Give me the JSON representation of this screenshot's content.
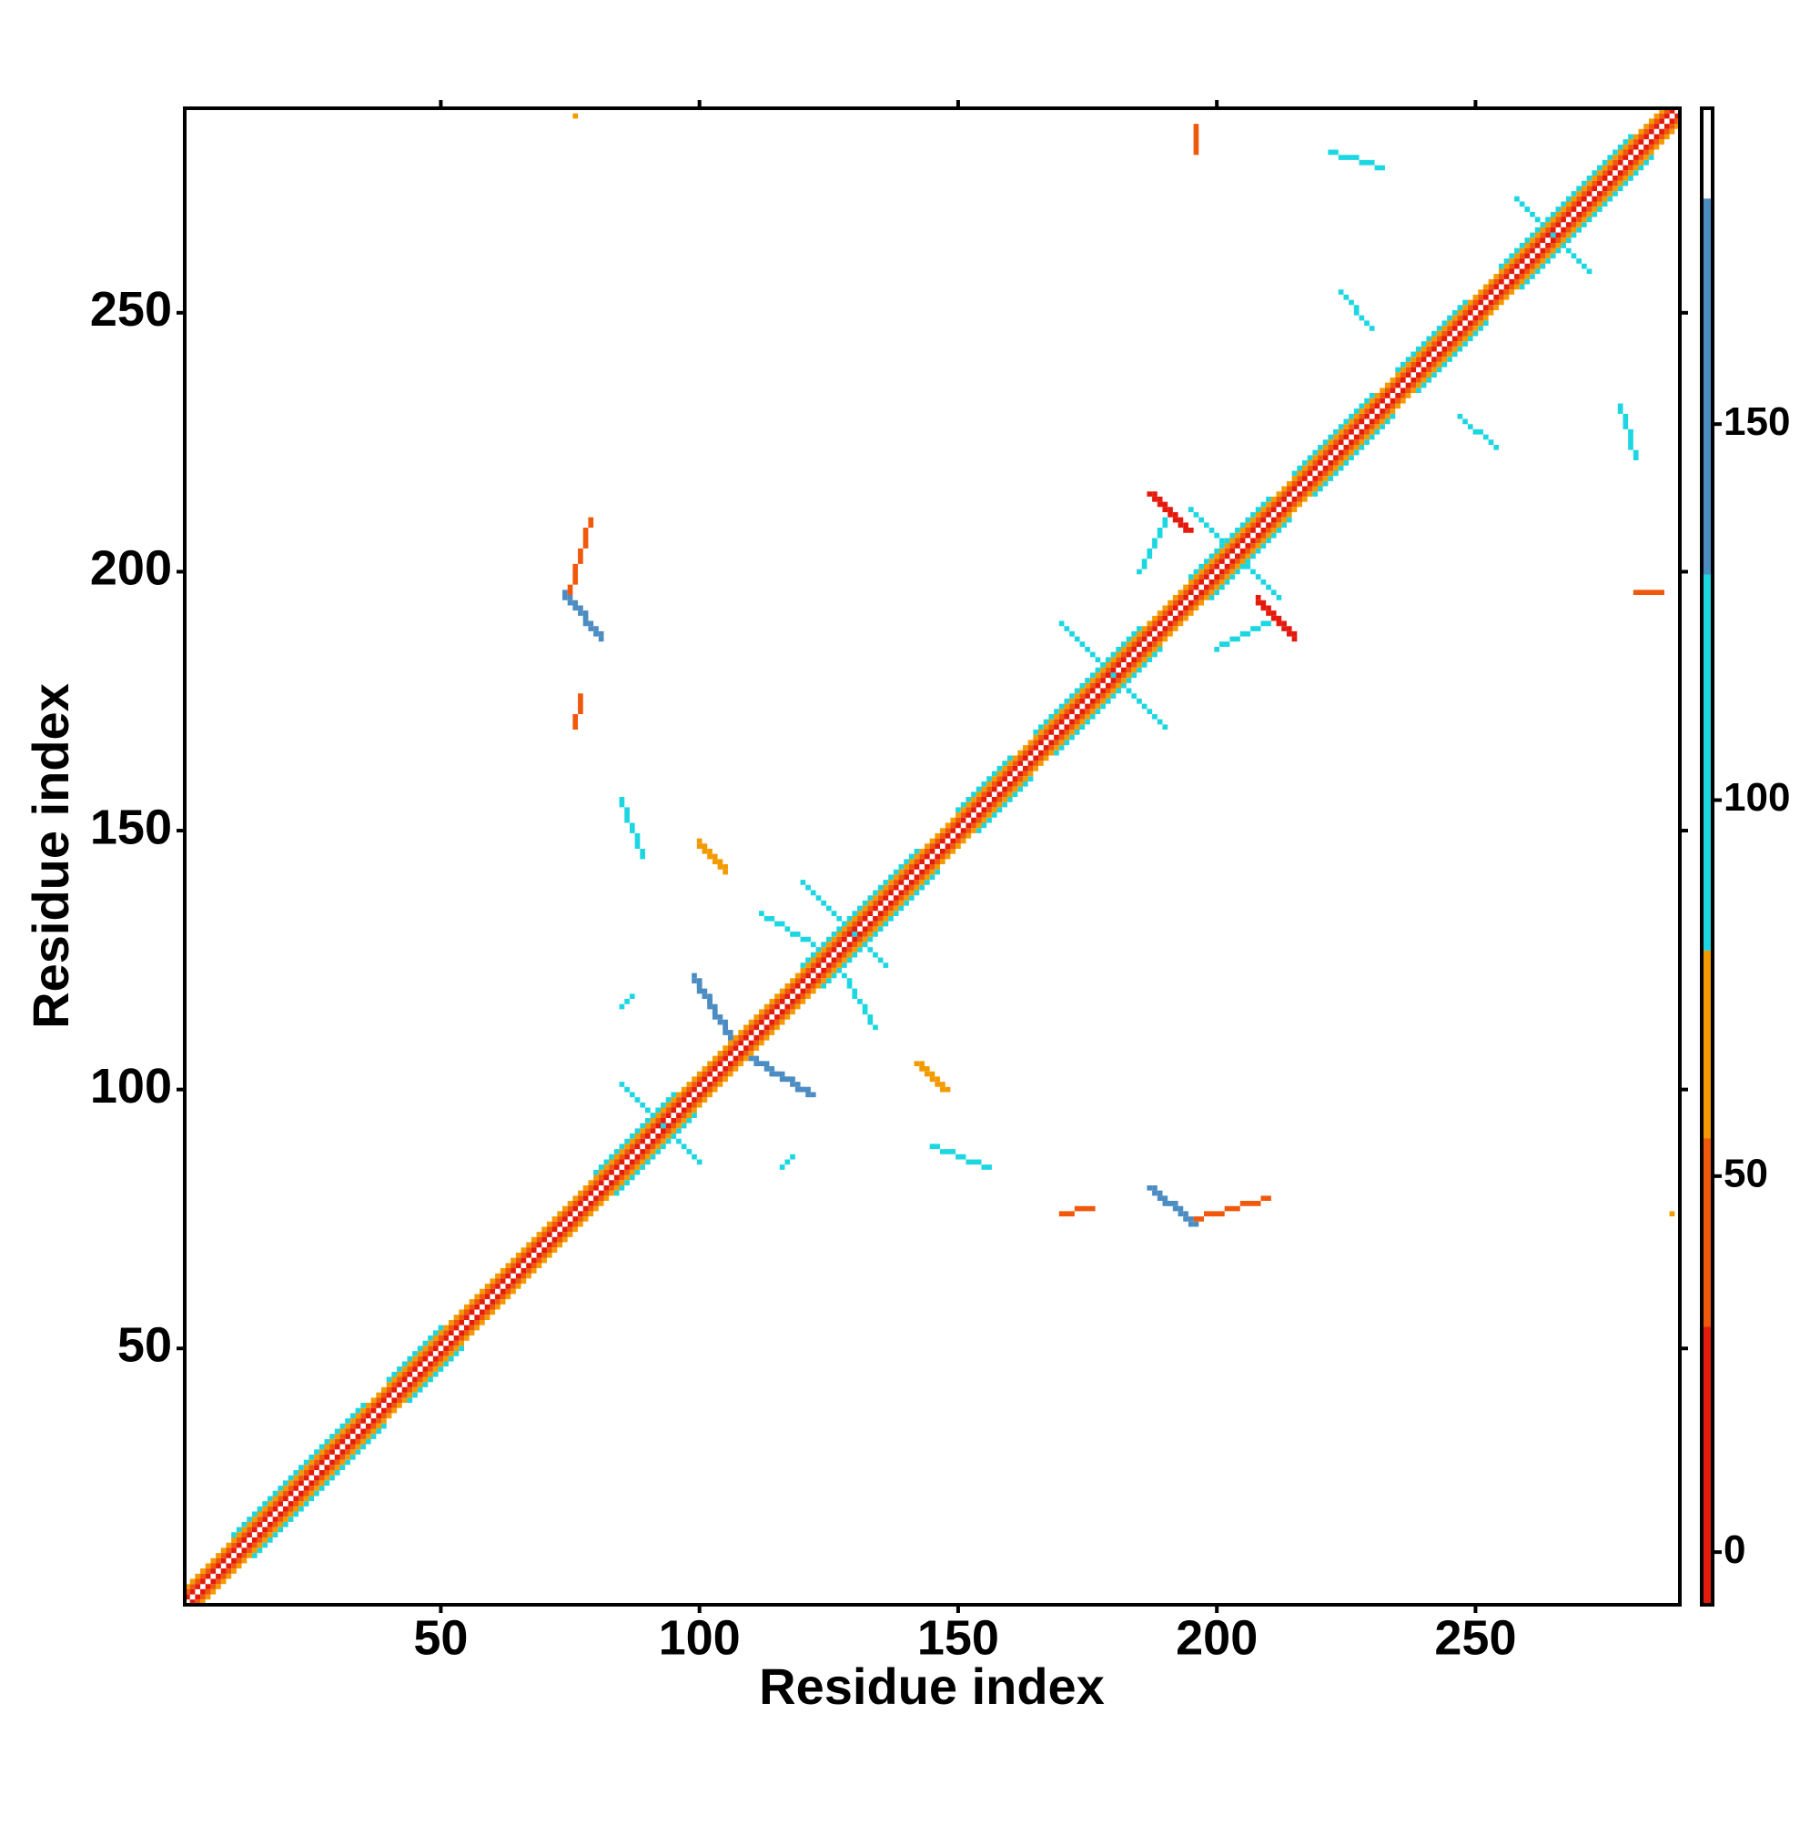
{
  "chart_data": {
    "type": "heatmap",
    "x_label": "Residue index",
    "y_label": "Residue index",
    "xlim": [
      0.5,
      289.5
    ],
    "ylim": [
      0.5,
      289.5
    ],
    "xticks": [
      50,
      100,
      150,
      200,
      250
    ],
    "yticks": [
      50,
      100,
      150,
      200,
      250
    ],
    "colorbar": {
      "limits": [
        -7,
        192
      ],
      "bins": [
        -7,
        30,
        55,
        80,
        130,
        180,
        192
      ],
      "colors": [
        "#e41a0c",
        "#f0580c",
        "#f39a00",
        "#1cd6e2",
        "#4b8cc2",
        "#ffffff"
      ],
      "ticks": [
        0,
        50,
        100,
        150
      ]
    },
    "segments": [
      {
        "x": [
          10,
          35
        ],
        "y": [
          14,
          39
        ],
        "value": 105
      },
      {
        "x": [
          14,
          39
        ],
        "y": [
          10,
          35
        ],
        "value": 105
      },
      {
        "x": [
          40,
          50
        ],
        "y": [
          44,
          54
        ],
        "value": 105
      },
      {
        "x": [
          44,
          54
        ],
        "y": [
          40,
          50
        ],
        "value": 105
      },
      {
        "x": [
          80,
          95
        ],
        "y": [
          84,
          99
        ],
        "value": 105
      },
      {
        "x": [
          84,
          99
        ],
        "y": [
          80,
          95
        ],
        "value": 105
      },
      {
        "x": [
          120,
          142
        ],
        "y": [
          124,
          146
        ],
        "value": 105
      },
      {
        "x": [
          124,
          146
        ],
        "y": [
          120,
          142
        ],
        "value": 105
      },
      {
        "x": [
          150,
          160
        ],
        "y": [
          154,
          164
        ],
        "value": 105
      },
      {
        "x": [
          154,
          164
        ],
        "y": [
          150,
          160
        ],
        "value": 105
      },
      {
        "x": [
          165,
          185
        ],
        "y": [
          169,
          189
        ],
        "value": 105
      },
      {
        "x": [
          169,
          189
        ],
        "y": [
          165,
          185
        ],
        "value": 105
      },
      {
        "x": [
          195,
          210
        ],
        "y": [
          199,
          214
        ],
        "value": 105
      },
      {
        "x": [
          199,
          214
        ],
        "y": [
          195,
          210
        ],
        "value": 105
      },
      {
        "x": [
          215,
          230
        ],
        "y": [
          219,
          234
        ],
        "value": 105
      },
      {
        "x": [
          219,
          234
        ],
        "y": [
          215,
          230
        ],
        "value": 105
      },
      {
        "x": [
          235,
          248
        ],
        "y": [
          239,
          252
        ],
        "value": 105
      },
      {
        "x": [
          239,
          252
        ],
        "y": [
          235,
          248
        ],
        "value": 105
      },
      {
        "x": [
          255,
          280
        ],
        "y": [
          259,
          284
        ],
        "value": 105
      },
      {
        "x": [
          259,
          284
        ],
        "y": [
          255,
          280
        ],
        "value": 105
      },
      {
        "x": [
          258,
          272
        ],
        "y": [
          272,
          258
        ],
        "value": 105
      },
      {
        "x": [
          170,
          190
        ],
        "y": [
          190,
          170
        ],
        "value": 105
      },
      {
        "x": [
          85,
          100
        ],
        "y": [
          101,
          86
        ],
        "value": 105
      },
      {
        "x": [
          120,
          136
        ],
        "y": [
          140,
          124
        ],
        "value": 105
      },
      {
        "x": [
          195,
          212
        ],
        "y": [
          212,
          195
        ],
        "value": 105
      },
      {
        "x": [
          1,
          286
        ],
        "y": [
          4,
          289
        ],
        "value": 65
      },
      {
        "x": [
          4,
          289
        ],
        "y": [
          1,
          286
        ],
        "value": 65
      },
      {
        "x": [
          1,
          287
        ],
        "y": [
          3,
          289
        ],
        "value": 45
      },
      {
        "x": [
          3,
          289
        ],
        "y": [
          1,
          287
        ],
        "value": 45
      },
      {
        "x": [
          1,
          288
        ],
        "y": [
          2,
          289
        ],
        "value": 10
      },
      {
        "x": [
          2,
          289
        ],
        "y": [
          1,
          288
        ],
        "value": 10
      },
      {
        "x": [
          187,
          194
        ],
        "y": [
          215,
          208
        ],
        "value": 10
      },
      {
        "x": [
          188,
          195
        ],
        "y": [
          215,
          208
        ],
        "value": 10
      },
      {
        "x": [
          215,
          208
        ],
        "y": [
          187,
          194
        ],
        "value": 10
      },
      {
        "x": [
          215,
          208
        ],
        "y": [
          188,
          195
        ],
        "value": 10
      },
      {
        "x": [
          187,
          195
        ],
        "y": [
          81,
          74
        ],
        "value": 155
      },
      {
        "x": [
          188,
          196
        ],
        "y": [
          81,
          74
        ],
        "value": 155
      },
      {
        "x": [
          81,
          74
        ],
        "y": [
          187,
          195
        ],
        "value": 155
      },
      {
        "x": [
          81,
          74
        ],
        "y": [
          188,
          196
        ],
        "value": 155
      },
      {
        "x": [
          196,
          210
        ],
        "y": [
          75,
          79
        ],
        "value": 45
      },
      {
        "x": [
          75,
          79
        ],
        "y": [
          196,
          210
        ],
        "value": 45
      },
      {
        "x": [
          170,
          176
        ],
        "y": [
          76,
          77
        ],
        "value": 45
      },
      {
        "x": [
          76,
          77
        ],
        "y": [
          170,
          176
        ],
        "value": 45
      },
      {
        "x": [
          142,
          147
        ],
        "y": [
          105,
          100
        ],
        "value": 65
      },
      {
        "x": [
          143,
          148
        ],
        "y": [
          105,
          100
        ],
        "value": 65
      },
      {
        "x": [
          105,
          100
        ],
        "y": [
          142,
          147
        ],
        "value": 65
      },
      {
        "x": [
          105,
          100
        ],
        "y": [
          143,
          148
        ],
        "value": 65
      },
      {
        "x": [
          110,
          121
        ],
        "y": [
          106,
          99
        ],
        "value": 155
      },
      {
        "x": [
          111,
          122
        ],
        "y": [
          106,
          99
        ],
        "value": 155
      },
      {
        "x": [
          106,
          99
        ],
        "y": [
          110,
          121
        ],
        "value": 155
      },
      {
        "x": [
          106,
          99
        ],
        "y": [
          111,
          122
        ],
        "value": 155
      },
      {
        "x": [
          112,
          122
        ],
        "y": [
          134,
          128
        ],
        "value": 105
      },
      {
        "x": [
          134,
          128
        ],
        "y": [
          112,
          122
        ],
        "value": 105
      },
      {
        "x": [
          85,
          87
        ],
        "y": [
          116,
          118
        ],
        "value": 105
      },
      {
        "x": [
          116,
          118
        ],
        "y": [
          85,
          87
        ],
        "value": 105
      },
      {
        "x": [
          145,
          156
        ],
        "y": [
          89,
          85
        ],
        "value": 105
      },
      {
        "x": [
          89,
          85
        ],
        "y": [
          145,
          156
        ],
        "value": 105
      },
      {
        "x": [
          200,
          210
        ],
        "y": [
          185,
          190
        ],
        "value": 105
      },
      {
        "x": [
          185,
          190
        ],
        "y": [
          200,
          210
        ],
        "value": 105
      },
      {
        "x": [
          247,
          254
        ],
        "y": [
          230,
          224
        ],
        "value": 105
      },
      {
        "x": [
          230,
          224
        ],
        "y": [
          247,
          254
        ],
        "value": 105
      },
      {
        "x": [
          222,
          232
        ],
        "y": [
          281,
          278
        ],
        "value": 105
      },
      {
        "x": [
          281,
          278
        ],
        "y": [
          222,
          232
        ],
        "value": 105
      },
      {
        "x": [
          196,
          196
        ],
        "y": [
          281,
          286
        ],
        "value": 45
      },
      {
        "x": [
          281,
          286
        ],
        "y": [
          196,
          196
        ],
        "value": 45
      },
      {
        "x": [
          76,
          76
        ],
        "y": [
          288,
          288
        ],
        "value": 65
      },
      {
        "x": [
          288,
          288
        ],
        "y": [
          76,
          76
        ],
        "value": 65
      }
    ]
  }
}
